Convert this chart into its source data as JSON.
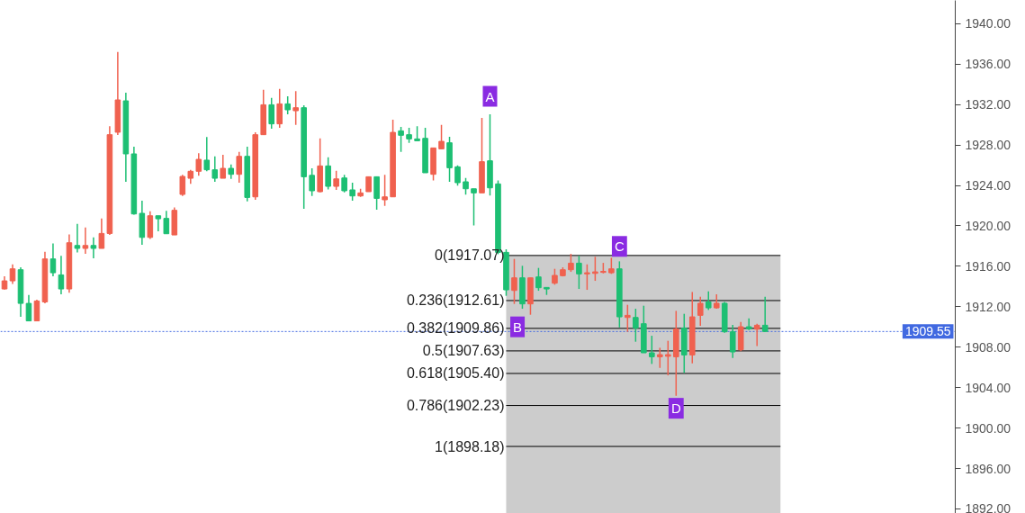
{
  "chart_data": {
    "type": "candlestick",
    "categories": [
      null,
      null,
      null,
      null,
      null,
      null,
      null,
      null,
      null,
      null,
      null,
      null,
      null,
      null,
      null,
      null,
      null,
      null,
      null,
      null,
      null,
      null,
      null,
      null,
      null,
      null,
      null,
      null,
      null,
      null,
      null,
      null,
      null,
      null,
      null,
      null,
      null,
      null,
      null,
      null,
      null,
      null,
      null,
      null,
      null,
      null,
      null,
      null,
      null,
      null,
      null,
      null,
      null,
      null,
      null,
      null,
      null,
      null,
      null,
      null,
      null,
      null,
      null,
      null,
      null,
      null,
      null,
      null,
      null,
      null,
      null,
      null,
      null,
      null,
      null,
      null,
      null,
      null,
      null,
      null,
      null,
      null,
      null,
      null,
      null,
      null,
      null,
      null,
      null,
      null,
      null,
      null,
      null,
      null,
      null,
      null,
      null,
      null,
      null,
      null,
      null,
      null,
      null,
      null,
      null,
      null,
      null,
      null,
      null,
      null,
      null,
      null,
      null,
      null,
      null,
      null,
      null,
      null
    ],
    "ohlc": [
      [
        1913.76,
        1915.0,
        1913.7,
        1914.56
      ],
      [
        1914.56,
        1916.2,
        1914.26,
        1915.75
      ],
      [
        1915.66,
        1915.9,
        1911.0,
        1912.33
      ],
      [
        1912.33,
        1913.16,
        1910.6,
        1910.6
      ],
      [
        1910.6,
        1912.7,
        1910.6,
        1912.57
      ],
      [
        1912.48,
        1917.44,
        1912.33,
        1916.73
      ],
      [
        1916.73,
        1918.27,
        1915.0,
        1915.36
      ],
      [
        1915.15,
        1917.03,
        1913.23,
        1913.76
      ],
      [
        1913.76,
        1919.16,
        1913.38,
        1918.33
      ],
      [
        1918.06,
        1920.2,
        1917.38,
        1917.77
      ],
      [
        1917.77,
        1919.85,
        1917.23,
        1918.06
      ],
      [
        1918.06,
        1918.86,
        1916.79,
        1917.77
      ],
      [
        1917.77,
        1920.74,
        1917.77,
        1919.25
      ],
      [
        1919.25,
        1929.85,
        1919.1,
        1929.02
      ],
      [
        1929.26,
        1937.21,
        1929.0,
        1932.46
      ],
      [
        1932.37,
        1933.17,
        1924.36,
        1927.12
      ],
      [
        1927.12,
        1927.83,
        1921.1,
        1921.18
      ],
      [
        1921.24,
        1922.49,
        1918.12,
        1918.86
      ],
      [
        1918.86,
        1921.45,
        1918.7,
        1921.0
      ],
      [
        1921.0,
        1921.0,
        1919.46,
        1920.7
      ],
      [
        1920.74,
        1921.48,
        1919.22,
        1919.22
      ],
      [
        1919.1,
        1921.83,
        1919.1,
        1921.54
      ],
      [
        1923.11,
        1925.04,
        1922.96,
        1924.89
      ],
      [
        1924.71,
        1925.55,
        1924.15,
        1925.4
      ],
      [
        1925.4,
        1927.18,
        1924.95,
        1926.58
      ],
      [
        1926.5,
        1928.78,
        1925.4,
        1925.55
      ],
      [
        1925.55,
        1926.88,
        1924.36,
        1924.71
      ],
      [
        1924.71,
        1927.03,
        1924.71,
        1925.69
      ],
      [
        1925.69,
        1926.08,
        1924.65,
        1925.1
      ],
      [
        1925.1,
        1927.33,
        1924.27,
        1926.88
      ],
      [
        1926.88,
        1927.83,
        1922.43,
        1922.81
      ],
      [
        1922.87,
        1929.25,
        1922.58,
        1929.02
      ],
      [
        1929.02,
        1933.47,
        1929.0,
        1931.98
      ],
      [
        1931.98,
        1932.67,
        1929.61,
        1930.09
      ],
      [
        1930.09,
        1933.56,
        1929.7,
        1932.07
      ],
      [
        1932.07,
        1932.82,
        1931.03,
        1931.48
      ],
      [
        1931.39,
        1933.32,
        1930.0,
        1931.69
      ],
      [
        1931.69,
        1931.93,
        1921.68,
        1924.86
      ],
      [
        1925.0,
        1925.69,
        1922.96,
        1923.47
      ],
      [
        1923.38,
        1928.66,
        1923.32,
        1925.93
      ],
      [
        1925.93,
        1926.79,
        1923.61,
        1923.91
      ],
      [
        1923.91,
        1925.45,
        1923.56,
        1924.65
      ],
      [
        1924.74,
        1925.04,
        1923.32,
        1923.47
      ],
      [
        1923.56,
        1924.27,
        1922.49,
        1922.96
      ],
      [
        1922.96,
        1923.67,
        1922.87,
        1923.26
      ],
      [
        1923.38,
        1924.86,
        1923.38,
        1924.86
      ],
      [
        1924.86,
        1924.86,
        1921.6,
        1922.72
      ],
      [
        1922.58,
        1925.04,
        1921.98,
        1922.87
      ],
      [
        1922.87,
        1930.5,
        1922.87,
        1929.25
      ],
      [
        1929.4,
        1929.79,
        1927.33,
        1928.96
      ],
      [
        1929.02,
        1929.7,
        1928.22,
        1928.6
      ],
      [
        1928.6,
        1929.85,
        1928.42,
        1928.42
      ],
      [
        1928.66,
        1929.7,
        1925.25,
        1925.25
      ],
      [
        1925.1,
        1927.71,
        1924.5,
        1927.71
      ],
      [
        1927.62,
        1930.0,
        1927.6,
        1928.36
      ],
      [
        1928.22,
        1928.81,
        1924.36,
        1925.75
      ],
      [
        1925.84,
        1925.99,
        1923.97,
        1924.27
      ],
      [
        1924.36,
        1924.74,
        1923.08,
        1923.67
      ],
      [
        1923.67,
        1923.67,
        1920.05,
        1923.26
      ],
      [
        1923.26,
        1930.68,
        1923.26,
        1926.35
      ],
      [
        1926.44,
        1931.03,
        1923.0,
        1923.76
      ],
      [
        1924.15,
        1924.5,
        1917.2,
        1917.38
      ],
      [
        1917.38,
        1917.68,
        1913.08,
        1913.67
      ],
      [
        1913.61,
        1916.73,
        1912.28,
        1914.86
      ],
      [
        1914.86,
        1916.05,
        1911.8,
        1912.28
      ],
      [
        1912.28,
        1914.86,
        1911.21,
        1914.86
      ],
      [
        1914.95,
        1915.84,
        1913.58,
        1913.88
      ],
      [
        1913.91,
        1913.91,
        1913.17,
        1913.76
      ],
      [
        1914.33,
        1915.75,
        1914.18,
        1915.1
      ],
      [
        1915.07,
        1915.9,
        1915.0,
        1915.66
      ],
      [
        1915.66,
        1917.23,
        1915.45,
        1916.31
      ],
      [
        1916.31,
        1917.03,
        1913.76,
        1915.25
      ],
      [
        1915.25,
        1916.19,
        1913.67,
        1915.36
      ],
      [
        1915.3,
        1916.94,
        1914.56,
        1915.45
      ],
      [
        1915.4,
        1916.34,
        1915.3,
        1915.5
      ],
      [
        1915.36,
        1916.85,
        1915.25,
        1915.75
      ],
      [
        1915.75,
        1916.49,
        1909.96,
        1911.0
      ],
      [
        1910.94,
        1912.19,
        1909.52,
        1911.15
      ],
      [
        1910.94,
        1911.8,
        1908.54,
        1909.9
      ],
      [
        1910.32,
        1912.1,
        1907.44,
        1907.44
      ],
      [
        1907.44,
        1909.13,
        1906.34,
        1907.05
      ],
      [
        1907.05,
        1907.94,
        1905.95,
        1907.26
      ],
      [
        1907.1,
        1908.63,
        1905.21,
        1907.26
      ],
      [
        1907.05,
        1911.59,
        1903.19,
        1909.81
      ],
      [
        1909.9,
        1911.3,
        1905.45,
        1907.23
      ],
      [
        1907.23,
        1913.46,
        1906.4,
        1911.0
      ],
      [
        1911.15,
        1912.99,
        1910.11,
        1912.34
      ],
      [
        1912.48,
        1913.52,
        1911.68,
        1911.89
      ],
      [
        1911.89,
        1913.23,
        1911.8,
        1912.34
      ],
      [
        1912.34,
        1912.48,
        1909.43,
        1909.52
      ],
      [
        1909.52,
        1910.2,
        1906.93,
        1907.53
      ],
      [
        1907.74,
        1910.5,
        1907.59,
        1910.02
      ],
      [
        1910.02,
        1910.85,
        1909.7,
        1909.81
      ],
      [
        1909.78,
        1910.32,
        1908.12,
        1910.17
      ],
      [
        1910.17,
        1912.99,
        1909.55,
        1909.55
      ],
      null,
      null,
      null,
      null,
      null,
      null,
      null,
      null,
      null,
      null,
      null,
      null,
      null,
      null,
      null,
      null,
      null,
      null,
      null,
      null,
      null,
      null,
      null
    ],
    "colors": [
      "#f0614f",
      "#f0614f",
      "#1dbf73",
      "#1dbf73",
      "#f0614f",
      "#f0614f",
      "#1dbf73",
      "#1dbf73",
      "#f0614f",
      "#1dbf73",
      "#f0614f",
      "#1dbf73",
      "#f0614f",
      "#f0614f",
      "#f0614f",
      "#1dbf73",
      "#1dbf73",
      "#1dbf73",
      "#f0614f",
      "#1dbf73",
      "#1dbf73",
      "#f0614f",
      "#f0614f",
      "#f0614f",
      "#f0614f",
      "#1dbf73",
      "#1dbf73",
      "#f0614f",
      "#1dbf73",
      "#f0614f",
      "#1dbf73",
      "#f0614f",
      "#f0614f",
      "#1dbf73",
      "#f0614f",
      "#1dbf73",
      "#f0614f",
      "#1dbf73",
      "#1dbf73",
      "#f0614f",
      "#1dbf73",
      "#f0614f",
      "#1dbf73",
      "#1dbf73",
      "#f0614f",
      "#f0614f",
      "#1dbf73",
      "#f0614f",
      "#f0614f",
      "#1dbf73",
      "#1dbf73",
      "#1dbf73",
      "#1dbf73",
      "#f0614f",
      "#f0614f",
      "#1dbf73",
      "#1dbf73",
      "#1dbf73",
      "#1dbf73",
      "#f0614f",
      "#1dbf73",
      "#1dbf73",
      "#1dbf73",
      "#f0614f",
      "#1dbf73",
      "#f0614f",
      "#1dbf73",
      "#1dbf73",
      "#f0614f",
      "#f0614f",
      "#f0614f",
      "#1dbf73",
      "#f0614f",
      "#f0614f",
      "#f0614f",
      "#f0614f",
      "#1dbf73",
      "#f0614f",
      "#1dbf73",
      "#1dbf73",
      "#1dbf73",
      "#f0614f",
      "#f0614f",
      "#f0614f",
      "#1dbf73",
      "#f0614f",
      "#f0614f",
      "#1dbf73",
      "#f0614f",
      "#1dbf73",
      "#1dbf73",
      "#f0614f",
      "#1dbf73",
      "#f0614f",
      "#1dbf73",
      null,
      null,
      null,
      null,
      null,
      null,
      null,
      null,
      null,
      null,
      null,
      null,
      null,
      null,
      null,
      null,
      null,
      null,
      null,
      null,
      null,
      null,
      null
    ],
    "ylim": [
      1891.55,
      1942.3
    ],
    "yticks": [
      {
        "value": 1892,
        "label": "1892.00"
      },
      {
        "value": 1896,
        "label": "1896.00"
      },
      {
        "value": 1900,
        "label": "1900.00"
      },
      {
        "value": 1904,
        "label": "1904.00"
      },
      {
        "value": 1908,
        "label": "1908.00"
      },
      {
        "value": 1912,
        "label": "1912.00"
      },
      {
        "value": 1916,
        "label": "1916.00"
      },
      {
        "value": 1920,
        "label": "1920.00"
      },
      {
        "value": 1924,
        "label": "1924.00"
      },
      {
        "value": 1928,
        "label": "1928.00"
      },
      {
        "value": 1932,
        "label": "1932.00"
      },
      {
        "value": 1936,
        "label": "1936.00"
      },
      {
        "value": 1940,
        "label": "1940.00"
      }
    ],
    "tick_labels": "y",
    "grid": false,
    "ref_lines": [
      {
        "axis": "y",
        "value": 1909.55,
        "label": "1909.55",
        "color": "#4169e1",
        "line_style": "dotted"
      },
      {
        "axis": "y",
        "value": 1917.07,
        "label": "0(1917.07)",
        "color": "#000000"
      },
      {
        "axis": "y",
        "value": 1912.61,
        "label": "0.236(1912.61)",
        "color": "#000000"
      },
      {
        "axis": "y",
        "value": 1909.86,
        "label": "0.382(1909.86)",
        "color": "#000000"
      },
      {
        "axis": "y",
        "value": 1907.63,
        "label": "0.5(1907.63)",
        "color": "#000000"
      },
      {
        "axis": "y",
        "value": 1905.4,
        "label": "0.618(1905.40)",
        "color": "#000000"
      },
      {
        "axis": "y",
        "value": 1902.23,
        "label": "0.786(1902.23)",
        "color": "#000000"
      },
      {
        "axis": "y",
        "value": 1898.18,
        "label": "1(1898.18)",
        "color": "#000000"
      }
    ],
    "bands": [
      {
        "axis": "y",
        "from": 1891.55,
        "to": 1917.07,
        "color": "#cccccc"
      }
    ],
    "annotations": [
      {
        "text": "A",
        "y": 1931.03
      },
      "B",
      {
        "text": "C",
        "y": 1916.9
      },
      "D"
    ]
  }
}
